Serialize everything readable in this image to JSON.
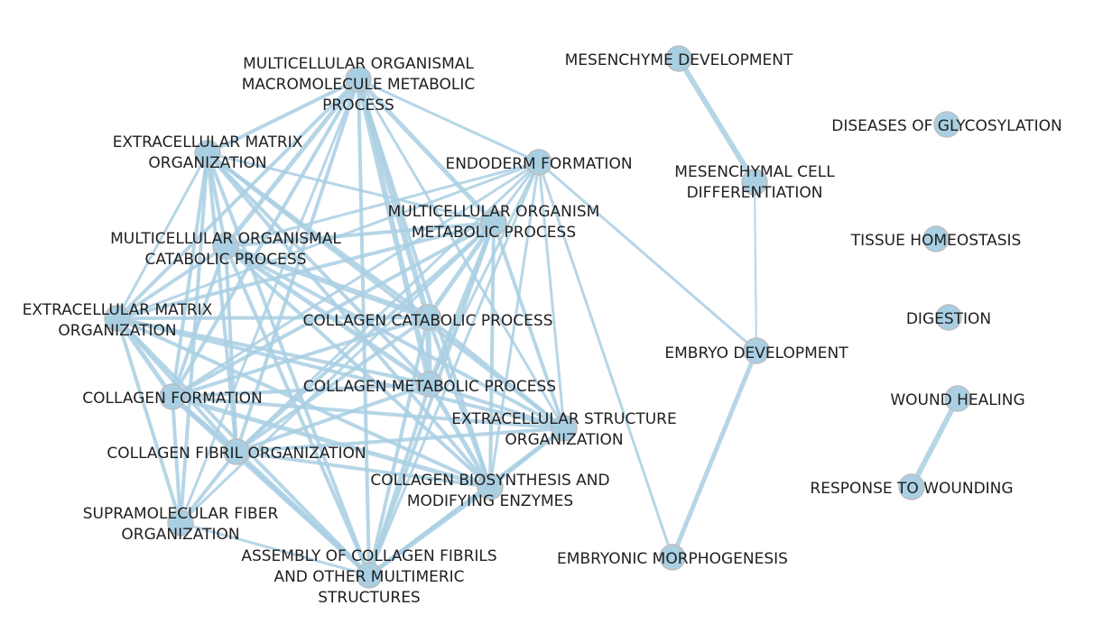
{
  "colors": {
    "edge": "#a9cfe3",
    "node_fill": "#a9cfe3",
    "node_stroke": "#bdbdbd",
    "label": "#1f1f1f"
  },
  "nodes": [
    {
      "id": "mcomp",
      "lines": [
        "MULTICELLULAR ORGANISMAL",
        "MACROMOLECULE METABOLIC",
        "PROCESS"
      ]
    },
    {
      "id": "ecm1",
      "lines": [
        "EXTRACELLULAR MATRIX",
        "ORGANIZATION"
      ]
    },
    {
      "id": "endo",
      "lines": [
        "ENDODERM FORMATION"
      ]
    },
    {
      "id": "mcmp",
      "lines": [
        "MULTICELLULAR ORGANISM",
        "METABOLIC PROCESS"
      ]
    },
    {
      "id": "mccp",
      "lines": [
        "MULTICELLULAR ORGANISMAL",
        "CATABOLIC PROCESS"
      ]
    },
    {
      "id": "ecm2",
      "lines": [
        "EXTRACELLULAR MATRIX",
        "ORGANIZATION"
      ]
    },
    {
      "id": "ccp",
      "lines": [
        "COLLAGEN CATABOLIC PROCESS"
      ]
    },
    {
      "id": "cf",
      "lines": [
        "COLLAGEN FORMATION"
      ]
    },
    {
      "id": "cmp",
      "lines": [
        "COLLAGEN METABOLIC PROCESS"
      ]
    },
    {
      "id": "eso",
      "lines": [
        "EXTRACELLULAR STRUCTURE",
        "ORGANIZATION"
      ]
    },
    {
      "id": "cfo",
      "lines": [
        "COLLAGEN FIBRIL ORGANIZATION"
      ]
    },
    {
      "id": "cbme",
      "lines": [
        "COLLAGEN BIOSYNTHESIS AND",
        "MODIFYING ENZYMES"
      ]
    },
    {
      "id": "sfo",
      "lines": [
        "SUPRAMOLECULAR FIBER",
        "ORGANIZATION"
      ]
    },
    {
      "id": "acf",
      "lines": [
        "ASSEMBLY OF COLLAGEN FIBRILS",
        "AND OTHER MULTIMERIC",
        "STRUCTURES"
      ]
    },
    {
      "id": "mesdev",
      "lines": [
        "MESENCHYME DEVELOPMENT"
      ]
    },
    {
      "id": "mescell",
      "lines": [
        "MESENCHYMAL CELL",
        "DIFFERENTIATION"
      ]
    },
    {
      "id": "embdev",
      "lines": [
        "EMBRYO DEVELOPMENT"
      ]
    },
    {
      "id": "embmorph",
      "lines": [
        "EMBRYONIC MORPHOGENESIS"
      ]
    },
    {
      "id": "glyco",
      "lines": [
        "DISEASES OF GLYCOSYLATION"
      ]
    },
    {
      "id": "tissue",
      "lines": [
        "TISSUE HOMEOSTASIS"
      ]
    },
    {
      "id": "digest",
      "lines": [
        "DIGESTION"
      ]
    },
    {
      "id": "wound",
      "lines": [
        "WOUND HEALING"
      ]
    },
    {
      "id": "response",
      "lines": [
        "RESPONSE TO WOUNDING"
      ]
    }
  ],
  "edges": [
    [
      "mcomp",
      "ecm1",
      4
    ],
    [
      "mcomp",
      "endo",
      3
    ],
    [
      "mcomp",
      "mcmp",
      5
    ],
    [
      "mcomp",
      "mccp",
      5
    ],
    [
      "mcomp",
      "ecm2",
      4
    ],
    [
      "mcomp",
      "ccp",
      6
    ],
    [
      "mcomp",
      "cf",
      4
    ],
    [
      "mcomp",
      "cmp",
      6
    ],
    [
      "mcomp",
      "eso",
      3
    ],
    [
      "mcomp",
      "cfo",
      4
    ],
    [
      "mcomp",
      "cbme",
      4
    ],
    [
      "mcomp",
      "acf",
      4
    ],
    [
      "mcomp",
      "sfo",
      3
    ],
    [
      "ecm1",
      "mcmp",
      3
    ],
    [
      "ecm1",
      "mccp",
      4
    ],
    [
      "ecm1",
      "ccp",
      4
    ],
    [
      "ecm1",
      "cf",
      4
    ],
    [
      "ecm1",
      "cmp",
      4
    ],
    [
      "ecm1",
      "eso",
      4
    ],
    [
      "ecm1",
      "cfo",
      4
    ],
    [
      "ecm1",
      "cbme",
      4
    ],
    [
      "ecm1",
      "acf",
      4
    ],
    [
      "ecm1",
      "sfo",
      4
    ],
    [
      "ecm1",
      "ecm2",
      3
    ],
    [
      "endo",
      "mcmp",
      3
    ],
    [
      "endo",
      "mccp",
      3
    ],
    [
      "endo",
      "ecm2",
      3
    ],
    [
      "endo",
      "cf",
      3
    ],
    [
      "endo",
      "cfo",
      3
    ],
    [
      "endo",
      "cmp",
      3
    ],
    [
      "endo",
      "cbme",
      3
    ],
    [
      "endo",
      "embdev",
      3
    ],
    [
      "endo",
      "embmorph",
      3
    ],
    [
      "endo",
      "eso",
      3
    ],
    [
      "endo",
      "acf",
      3
    ],
    [
      "mcmp",
      "mccp",
      4
    ],
    [
      "mcmp",
      "ecm2",
      4
    ],
    [
      "mcmp",
      "ccp",
      5
    ],
    [
      "mcmp",
      "cf",
      4
    ],
    [
      "mcmp",
      "cmp",
      5
    ],
    [
      "mcmp",
      "eso",
      4
    ],
    [
      "mcmp",
      "cfo",
      4
    ],
    [
      "mcmp",
      "cbme",
      4
    ],
    [
      "mcmp",
      "acf",
      4
    ],
    [
      "mcmp",
      "sfo",
      3
    ],
    [
      "mccp",
      "ecm2",
      4
    ],
    [
      "mccp",
      "ccp",
      6
    ],
    [
      "mccp",
      "cf",
      4
    ],
    [
      "mccp",
      "cmp",
      5
    ],
    [
      "mccp",
      "eso",
      4
    ],
    [
      "mccp",
      "cfo",
      4
    ],
    [
      "mccp",
      "cbme",
      4
    ],
    [
      "mccp",
      "acf",
      4
    ],
    [
      "ecm2",
      "ccp",
      4
    ],
    [
      "ecm2",
      "cf",
      5
    ],
    [
      "ecm2",
      "cmp",
      4
    ],
    [
      "ecm2",
      "eso",
      4
    ],
    [
      "ecm2",
      "cfo",
      4
    ],
    [
      "ecm2",
      "cbme",
      4
    ],
    [
      "ecm2",
      "acf",
      4
    ],
    [
      "ecm2",
      "sfo",
      4
    ],
    [
      "ccp",
      "cf",
      4
    ],
    [
      "ccp",
      "cmp",
      6
    ],
    [
      "ccp",
      "eso",
      4
    ],
    [
      "ccp",
      "cfo",
      4
    ],
    [
      "ccp",
      "cbme",
      4
    ],
    [
      "ccp",
      "acf",
      4
    ],
    [
      "cf",
      "cmp",
      4
    ],
    [
      "cf",
      "eso",
      4
    ],
    [
      "cf",
      "cfo",
      5
    ],
    [
      "cf",
      "cbme",
      5
    ],
    [
      "cf",
      "acf",
      5
    ],
    [
      "cf",
      "sfo",
      4
    ],
    [
      "cmp",
      "eso",
      4
    ],
    [
      "cmp",
      "cfo",
      4
    ],
    [
      "cmp",
      "cbme",
      5
    ],
    [
      "cmp",
      "acf",
      4
    ],
    [
      "eso",
      "cfo",
      4
    ],
    [
      "eso",
      "cbme",
      4
    ],
    [
      "eso",
      "acf",
      4
    ],
    [
      "cfo",
      "cbme",
      4
    ],
    [
      "cfo",
      "acf",
      5
    ],
    [
      "cfo",
      "sfo",
      4
    ],
    [
      "cbme",
      "acf",
      5
    ],
    [
      "sfo",
      "acf",
      3
    ],
    [
      "mesdev",
      "mescell",
      6
    ],
    [
      "mescell",
      "embdev",
      2
    ],
    [
      "embdev",
      "embmorph",
      5
    ],
    [
      "wound",
      "response",
      6
    ]
  ]
}
